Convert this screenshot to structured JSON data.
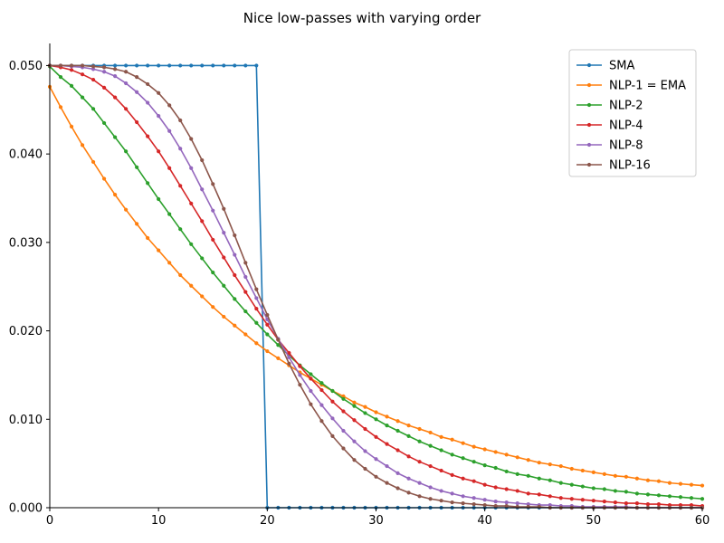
{
  "chart_data": {
    "type": "line",
    "title": "Nice low-passes with varying order",
    "xlabel": "",
    "ylabel": "",
    "xlim": [
      0,
      60
    ],
    "ylim": [
      0,
      0.0525
    ],
    "xticks": [
      0,
      10,
      20,
      30,
      40,
      50,
      60
    ],
    "xtick_labels": [
      "0",
      "10",
      "20",
      "30",
      "40",
      "50",
      "60"
    ],
    "yticks": [
      0.0,
      0.01,
      0.02,
      0.03,
      0.04,
      0.05
    ],
    "ytick_labels": [
      "0.000",
      "0.010",
      "0.020",
      "0.030",
      "0.040",
      "0.050"
    ],
    "grid": false,
    "legend_position": "top-right",
    "x": [
      0,
      1,
      2,
      3,
      4,
      5,
      6,
      7,
      8,
      9,
      10,
      11,
      12,
      13,
      14,
      15,
      16,
      17,
      18,
      19,
      20,
      21,
      22,
      23,
      24,
      25,
      26,
      27,
      28,
      29,
      30,
      31,
      32,
      33,
      34,
      35,
      36,
      37,
      38,
      39,
      40,
      41,
      42,
      43,
      44,
      45,
      46,
      47,
      48,
      49,
      50,
      51,
      52,
      53,
      54,
      55,
      56,
      57,
      58,
      59,
      60
    ],
    "series": [
      {
        "name": "SMA",
        "color": "#1f77b4",
        "values": [
          0.05,
          0.05,
          0.05,
          0.05,
          0.05,
          0.05,
          0.05,
          0.05,
          0.05,
          0.05,
          0.05,
          0.05,
          0.05,
          0.05,
          0.05,
          0.05,
          0.05,
          0.05,
          0.05,
          0.05,
          0,
          0,
          0,
          0,
          0,
          0,
          0,
          0,
          0,
          0,
          0,
          0,
          0,
          0,
          0,
          0,
          0,
          0,
          0,
          0,
          0,
          0,
          0,
          0,
          0,
          0,
          0,
          0,
          0,
          0,
          0,
          0,
          0,
          0,
          0,
          0,
          0,
          0,
          0,
          0,
          0
        ]
      },
      {
        "name": "NLP-1 = EMA",
        "color": "#ff7f0e",
        "values": [
          0.0476,
          0.0453,
          0.0431,
          0.041,
          0.0391,
          0.0372,
          0.0354,
          0.0337,
          0.0321,
          0.0305,
          0.0291,
          0.0277,
          0.0263,
          0.0251,
          0.0239,
          0.0227,
          0.0216,
          0.0206,
          0.0196,
          0.0186,
          0.0177,
          0.0169,
          0.0161,
          0.0153,
          0.0146,
          0.0139,
          0.0132,
          0.0126,
          0.0119,
          0.0114,
          0.0108,
          0.0103,
          0.0098,
          0.0093,
          0.0089,
          0.0085,
          0.008,
          0.0077,
          0.0073,
          0.0069,
          0.0066,
          0.0063,
          0.006,
          0.0057,
          0.0054,
          0.0051,
          0.0049,
          0.0047,
          0.0044,
          0.0042,
          0.004,
          0.0038,
          0.0036,
          0.0035,
          0.0033,
          0.0031,
          0.003,
          0.0028,
          0.0027,
          0.0026,
          0.0025
        ]
      },
      {
        "name": "NLP-2",
        "color": "#2ca02c",
        "values": [
          0.0499,
          0.0487,
          0.0477,
          0.0464,
          0.0451,
          0.0435,
          0.0419,
          0.0403,
          0.0385,
          0.0367,
          0.0349,
          0.0332,
          0.0315,
          0.0298,
          0.0282,
          0.0266,
          0.0251,
          0.0236,
          0.0222,
          0.0209,
          0.0196,
          0.0184,
          0.0172,
          0.0161,
          0.0151,
          0.0141,
          0.0132,
          0.0123,
          0.0115,
          0.0107,
          0.01,
          0.0093,
          0.0087,
          0.0081,
          0.0075,
          0.007,
          0.0065,
          0.006,
          0.0056,
          0.0052,
          0.0048,
          0.0045,
          0.0041,
          0.0038,
          0.0036,
          0.0033,
          0.0031,
          0.0028,
          0.0026,
          0.0024,
          0.0022,
          0.0021,
          0.0019,
          0.0018,
          0.0016,
          0.0015,
          0.0014,
          0.0013,
          0.0012,
          0.0011,
          0.001
        ]
      },
      {
        "name": "NLP-4",
        "color": "#d62728",
        "values": [
          0.05,
          0.0498,
          0.0495,
          0.049,
          0.0484,
          0.0475,
          0.0464,
          0.0451,
          0.0436,
          0.042,
          0.0403,
          0.0384,
          0.0364,
          0.0344,
          0.0324,
          0.0303,
          0.0283,
          0.0263,
          0.0244,
          0.0225,
          0.0207,
          0.019,
          0.0175,
          0.016,
          0.0146,
          0.0133,
          0.012,
          0.0109,
          0.0099,
          0.0089,
          0.008,
          0.0072,
          0.0065,
          0.0058,
          0.0052,
          0.0047,
          0.0042,
          0.0037,
          0.0033,
          0.003,
          0.0026,
          0.0023,
          0.0021,
          0.0019,
          0.0016,
          0.0015,
          0.0013,
          0.0011,
          0.001,
          0.0009,
          0.0008,
          0.0007,
          0.0006,
          0.0005,
          0.0005,
          0.0004,
          0.0004,
          0.0003,
          0.0003,
          0.0003,
          0.0002
        ]
      },
      {
        "name": "NLP-8",
        "color": "#9467bd",
        "values": [
          0.05,
          0.05,
          0.0499,
          0.0498,
          0.0496,
          0.0493,
          0.0488,
          0.048,
          0.047,
          0.0458,
          0.0443,
          0.0426,
          0.0406,
          0.0384,
          0.036,
          0.0336,
          0.0311,
          0.0286,
          0.0261,
          0.0237,
          0.0213,
          0.0191,
          0.017,
          0.015,
          0.0132,
          0.0116,
          0.0101,
          0.0087,
          0.0075,
          0.0064,
          0.0055,
          0.0047,
          0.0039,
          0.0033,
          0.0028,
          0.0023,
          0.0019,
          0.0016,
          0.0013,
          0.0011,
          0.0009,
          0.0007,
          0.0006,
          0.0005,
          0.0004,
          0.0003,
          0.0003,
          0.0002,
          0.0002,
          0.0001,
          0.0001,
          0.0001,
          0.0001,
          0.0001,
          0,
          0,
          0,
          0,
          0,
          0,
          0
        ]
      },
      {
        "name": "NLP-16",
        "color": "#8c564b",
        "values": [
          0.05,
          0.05,
          0.05,
          0.05,
          0.0499,
          0.0498,
          0.0496,
          0.0493,
          0.0487,
          0.0479,
          0.0469,
          0.0455,
          0.0438,
          0.0417,
          0.0393,
          0.0366,
          0.0338,
          0.0308,
          0.0277,
          0.0247,
          0.0218,
          0.019,
          0.0163,
          0.0139,
          0.0117,
          0.0098,
          0.0081,
          0.0067,
          0.0054,
          0.0044,
          0.0035,
          0.0028,
          0.0022,
          0.0017,
          0.0013,
          0.001,
          0.0008,
          0.0006,
          0.0005,
          0.0004,
          0.0003,
          0.0002,
          0.0002,
          0.0001,
          0.0001,
          0.0001,
          0,
          0,
          0,
          0,
          0,
          0,
          0,
          0,
          0,
          0,
          0,
          0,
          0,
          0,
          0
        ]
      }
    ]
  }
}
